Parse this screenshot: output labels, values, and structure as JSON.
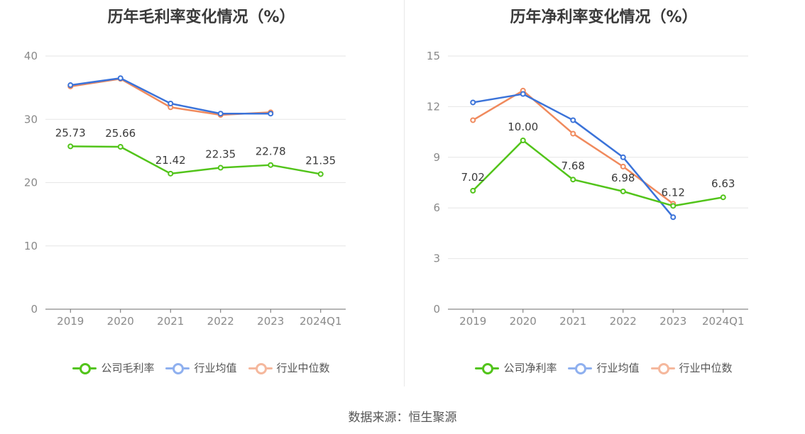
{
  "source": "数据来源：恒生聚源",
  "charts": [
    {
      "title": "历年毛利率变化情况（%）",
      "legend": [
        "公司毛利率",
        "行业均值",
        "行业中位数"
      ],
      "colors": [
        "#52c41a",
        "#3b73d9",
        "#f08a5d"
      ],
      "legend_icon_colors": [
        "#52c41a",
        "#8fb0ef",
        "#f5b89d"
      ]
    },
    {
      "title": "历年净利率变化情况（%）",
      "legend": [
        "公司净利率",
        "行业均值",
        "行业中位数"
      ],
      "colors": [
        "#52c41a",
        "#3b73d9",
        "#f08a5d"
      ],
      "legend_icon_colors": [
        "#52c41a",
        "#8fb0ef",
        "#f5b89d"
      ]
    }
  ],
  "chart_data": [
    {
      "type": "line",
      "title": "历年毛利率变化情况（%）",
      "categories": [
        "2019",
        "2020",
        "2021",
        "2022",
        "2023",
        "2024Q1"
      ],
      "yticks": [
        0,
        10,
        20,
        30,
        40
      ],
      "ylim": [
        0,
        40
      ],
      "grid": true,
      "legend_position": "bottom",
      "series": [
        {
          "name": "公司毛利率",
          "values": [
            25.73,
            25.66,
            21.42,
            22.35,
            22.78,
            21.35
          ],
          "labels": [
            "25.73",
            "25.66",
            "21.42",
            "22.35",
            "22.78",
            "21.35"
          ]
        },
        {
          "name": "行业均值",
          "values": [
            35.4,
            36.5,
            32.5,
            30.9,
            30.9,
            null
          ]
        },
        {
          "name": "行业中位数",
          "values": [
            35.2,
            36.4,
            31.9,
            30.7,
            31.1,
            null
          ]
        }
      ]
    },
    {
      "type": "line",
      "title": "历年净利率变化情况（%）",
      "categories": [
        "2019",
        "2020",
        "2021",
        "2022",
        "2023",
        "2024Q1"
      ],
      "yticks": [
        0,
        3,
        6,
        9,
        12,
        15
      ],
      "ylim": [
        0,
        15
      ],
      "grid": true,
      "legend_position": "bottom",
      "series": [
        {
          "name": "公司净利率",
          "values": [
            7.02,
            10.0,
            7.68,
            6.98,
            6.12,
            6.63
          ],
          "labels": [
            "7.02",
            "10.00",
            "7.68",
            "6.98",
            "6.12",
            "6.63"
          ]
        },
        {
          "name": "行业均值",
          "values": [
            12.25,
            12.75,
            11.2,
            9.0,
            5.45,
            null
          ]
        },
        {
          "name": "行业中位数",
          "values": [
            11.2,
            12.95,
            10.4,
            8.45,
            6.25,
            null
          ]
        }
      ]
    }
  ]
}
